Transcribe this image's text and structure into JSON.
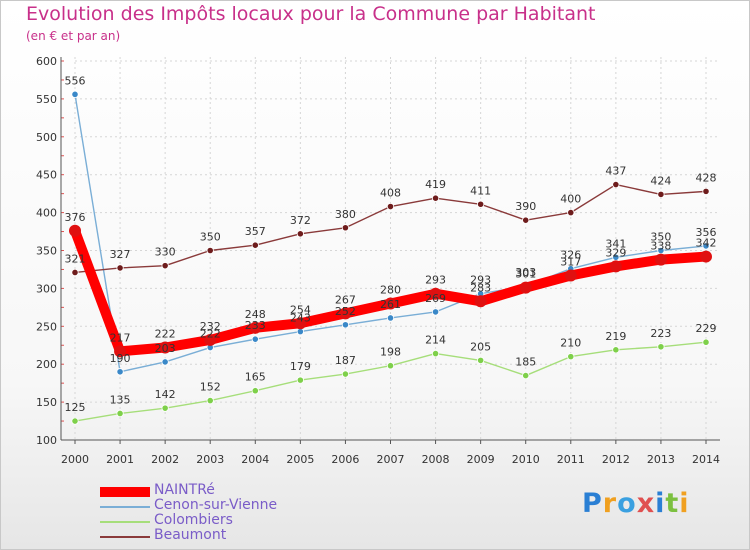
{
  "chart_data": {
    "type": "line",
    "title": "Evolution des Impôts locaux pour la Commune par Habitant",
    "subtitle": "(en € et par an)",
    "xlabel": "",
    "ylabel": "",
    "ylim": [
      100,
      600
    ],
    "y_ticks": [
      100,
      150,
      200,
      250,
      300,
      350,
      400,
      450,
      500,
      550,
      600
    ],
    "categories": [
      "2000",
      "2001",
      "2002",
      "2003",
      "2004",
      "2005",
      "2006",
      "2007",
      "2008",
      "2009",
      "2010",
      "2011",
      "2012",
      "2013",
      "2014"
    ],
    "grid": true,
    "series": [
      {
        "name": "NAINTRé",
        "color": "#ff0000",
        "marker_color": "#e01010",
        "emphasis": true,
        "values": [
          376,
          217,
          222,
          232,
          248,
          254,
          267,
          280,
          293,
          283,
          301,
          317,
          329,
          338,
          342
        ]
      },
      {
        "name": "Cenon-sur-Vienne",
        "color": "#7aaed6",
        "marker_color": "#3a88c8",
        "values": [
          556,
          190,
          203,
          222,
          233,
          243,
          252,
          261,
          269,
          293,
          303,
          326,
          341,
          350,
          356
        ]
      },
      {
        "name": "Colombiers",
        "color": "#a6de7a",
        "marker_color": "#7ed04a",
        "values": [
          125,
          135,
          142,
          152,
          165,
          179,
          187,
          198,
          214,
          205,
          185,
          210,
          219,
          223,
          229
        ]
      },
      {
        "name": "Beaumont",
        "color": "#8a3a3a",
        "marker_color": "#6e1c1c",
        "values": [
          321,
          327,
          330,
          350,
          357,
          372,
          380,
          408,
          419,
          411,
          390,
          400,
          437,
          424,
          428
        ]
      }
    ],
    "legend_position": "bottom-left"
  },
  "logo": {
    "text": "Proxiti",
    "letters": [
      "P",
      "r",
      "o",
      "x",
      "i",
      "t",
      "i"
    ],
    "colors": [
      "#2a7fd4",
      "#f0a020",
      "#3aa0e0",
      "#e05050",
      "#2a7fd4",
      "#7cc040",
      "#f0a020"
    ]
  }
}
